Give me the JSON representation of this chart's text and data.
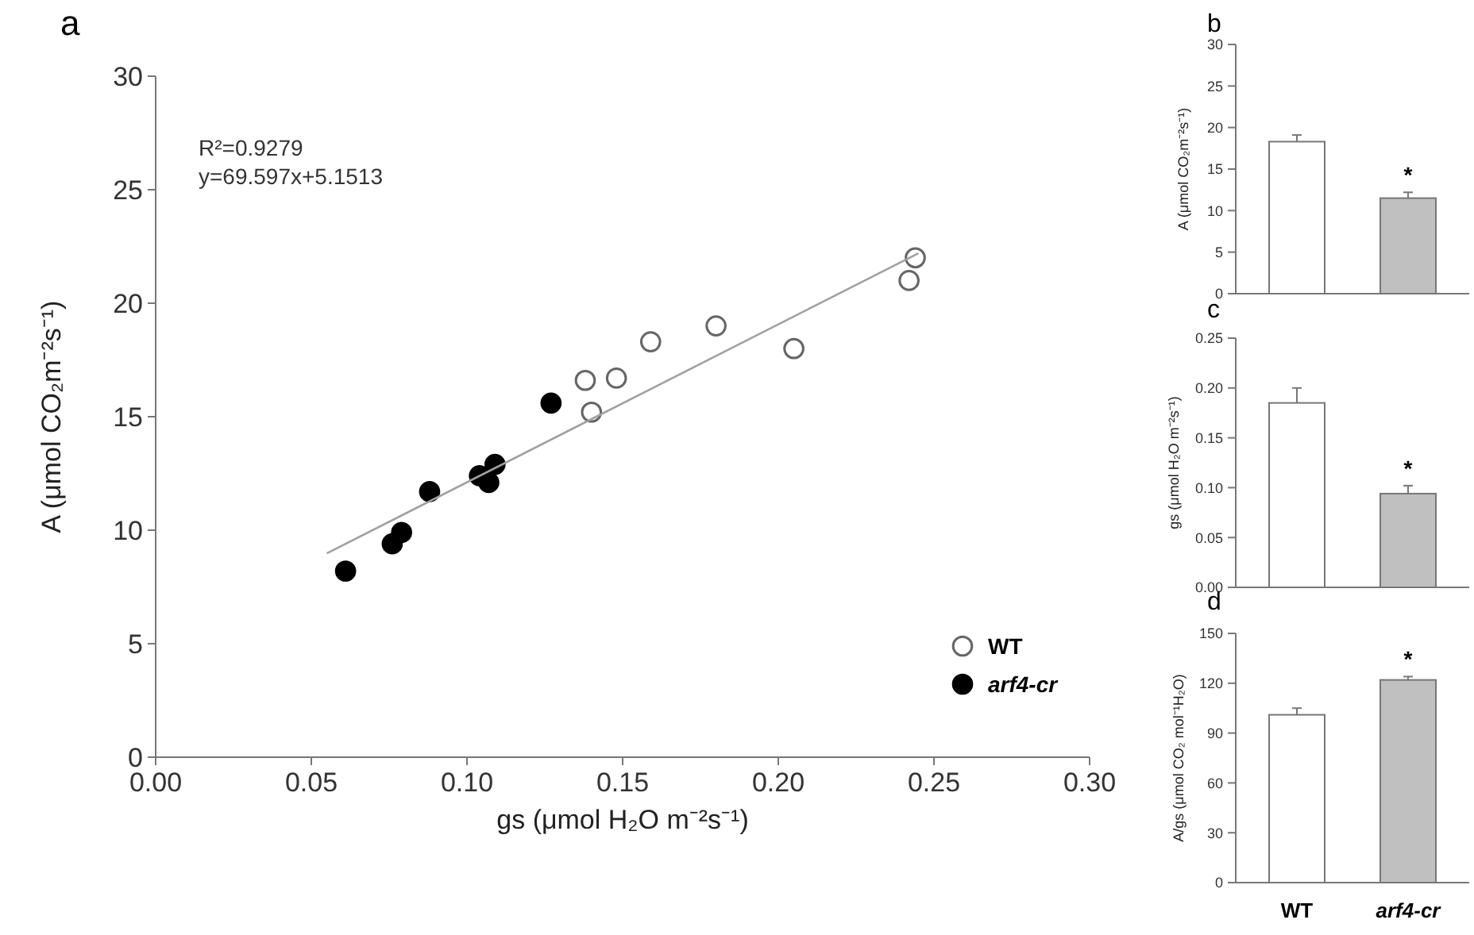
{
  "chart_data": [
    {
      "type": "scatter",
      "title": "a",
      "xlabel": "gs (μmol H₂O m⁻²s⁻¹)",
      "ylabel": "A (μmol CO₂m⁻²s⁻¹)",
      "marker": "circle",
      "legend": "bottom right",
      "xlim": [
        0,
        0.3
      ],
      "xticks": [
        {
          "value": 0,
          "label": "0.00"
        },
        {
          "value": 0.05,
          "label": "0.05"
        },
        {
          "value": 0.1,
          "label": "0.10"
        },
        {
          "value": 0.15,
          "label": "0.15"
        },
        {
          "value": 0.2,
          "label": "0.20"
        },
        {
          "value": 0.25,
          "label": "0.25"
        },
        {
          "value": 0.3,
          "label": "0.30"
        }
      ],
      "ylim": [
        0,
        30
      ],
      "yticks": [
        0,
        5,
        10,
        15,
        20,
        25,
        30
      ],
      "annotations": [
        "R²=0.9279",
        "y=69.597x+5.1513"
      ],
      "series": [
        {
          "name": "WT",
          "color": "#ffffff",
          "x": [
            0.138,
            0.14,
            0.148,
            0.159,
            0.18,
            0.205,
            0.242,
            0.244
          ],
          "values": [
            16.6,
            15.2,
            16.7,
            18.3,
            19.0,
            18.0,
            21.0,
            22.0
          ]
        },
        {
          "name": "arf4-cr",
          "color": "#000000",
          "x": [
            0.061,
            0.076,
            0.079,
            0.088,
            0.104,
            0.107,
            0.109,
            0.127
          ],
          "values": [
            8.2,
            9.4,
            9.9,
            11.7,
            12.4,
            12.1,
            12.9,
            15.6
          ]
        },
        {
          "type": "line",
          "marker": "none",
          "color": "#a0a0a0",
          "x": [
            0.055,
            0.245
          ],
          "values": [
            8.98,
            22.2
          ]
        }
      ]
    },
    {
      "type": "bar",
      "title": "b",
      "ylabel": "A (μmol CO₂m⁻²s⁻¹)",
      "categories": [
        null,
        null
      ],
      "values": [
        18.3,
        11.5
      ],
      "errors": [
        0.8,
        0.7
      ],
      "colors": [
        "#ffffff",
        "#c0c0c0"
      ],
      "ylim": [
        0,
        30
      ],
      "yticks": [
        0,
        5,
        10,
        15,
        20,
        25,
        30
      ],
      "tick_labels": "y",
      "annotations": [
        "*"
      ]
    },
    {
      "type": "bar",
      "title": "c",
      "ylabel": "gs (μmol H₂O m⁻²s⁻¹)",
      "categories": [
        null,
        null
      ],
      "values": [
        0.185,
        0.094
      ],
      "errors": [
        0.015,
        0.008
      ],
      "colors": [
        "#ffffff",
        "#c0c0c0"
      ],
      "ylim": [
        0,
        0.25
      ],
      "yticks": [
        {
          "value": 0,
          "label": "0.00"
        },
        {
          "value": 0.05,
          "label": "0.05"
        },
        {
          "value": 0.1,
          "label": "0.10"
        },
        {
          "value": 0.15,
          "label": "0.15"
        },
        {
          "value": 0.2,
          "label": "0.20"
        },
        {
          "value": 0.25,
          "label": "0.25"
        }
      ],
      "tick_labels": "y",
      "annotations": [
        "*"
      ]
    },
    {
      "type": "bar",
      "title": "d",
      "ylabel": "A/gs (μmol CO₂ mol⁻¹H₂O)",
      "categories": [
        "WT",
        "arf4-cr"
      ],
      "values": [
        101,
        122
      ],
      "errors": [
        4,
        2
      ],
      "colors": [
        "#ffffff",
        "#c0c0c0"
      ],
      "ylim": [
        0,
        150
      ],
      "yticks": [
        0,
        30,
        60,
        90,
        120,
        150
      ],
      "annotations": [
        "*"
      ]
    }
  ]
}
